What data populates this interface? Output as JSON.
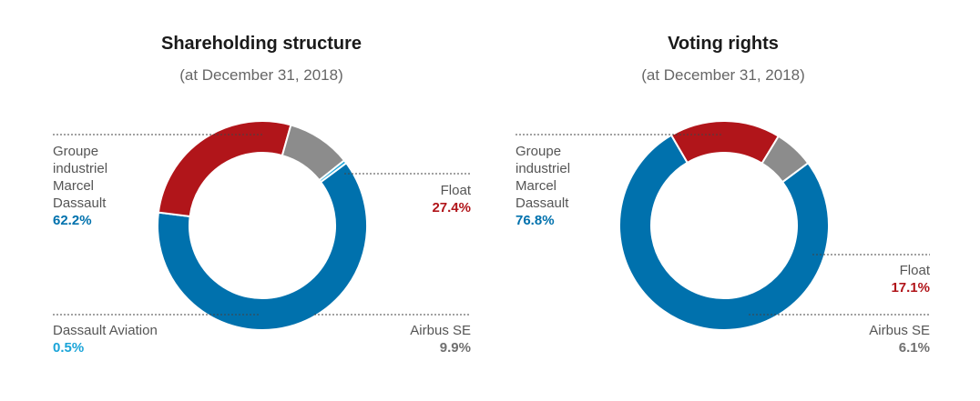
{
  "chart_data": [
    {
      "type": "pie",
      "title": "Shareholding structure",
      "subtitle": "(at December 31, 2018)",
      "slices": [
        {
          "label_lines": [
            "Groupe",
            "industriel",
            "Marcel",
            "Dassault"
          ],
          "value": 62.2,
          "value_text": "62.2%",
          "color": "#0071ad"
        },
        {
          "label_lines": [
            "Float"
          ],
          "value": 27.4,
          "value_text": "27.4%",
          "color": "#b1151a"
        },
        {
          "label_lines": [
            "Airbus SE"
          ],
          "value": 9.9,
          "value_text": "9.9%",
          "color": "#8c8c8c"
        },
        {
          "label_lines": [
            "Dassault Aviation"
          ],
          "value": 0.5,
          "value_text": "0.5%",
          "color": "#1aa4d8"
        }
      ]
    },
    {
      "type": "pie",
      "title": "Voting rights",
      "subtitle": "(at December 31, 2018)",
      "slices": [
        {
          "label_lines": [
            "Groupe",
            "industriel",
            "Marcel",
            "Dassault"
          ],
          "value": 76.8,
          "value_text": "76.8%",
          "color": "#0071ad"
        },
        {
          "label_lines": [
            "Float"
          ],
          "value": 17.1,
          "value_text": "17.1%",
          "color": "#b1151a"
        },
        {
          "label_lines": [
            "Airbus SE"
          ],
          "value": 6.1,
          "value_text": "6.1%",
          "color": "#8c8c8c"
        }
      ]
    }
  ]
}
